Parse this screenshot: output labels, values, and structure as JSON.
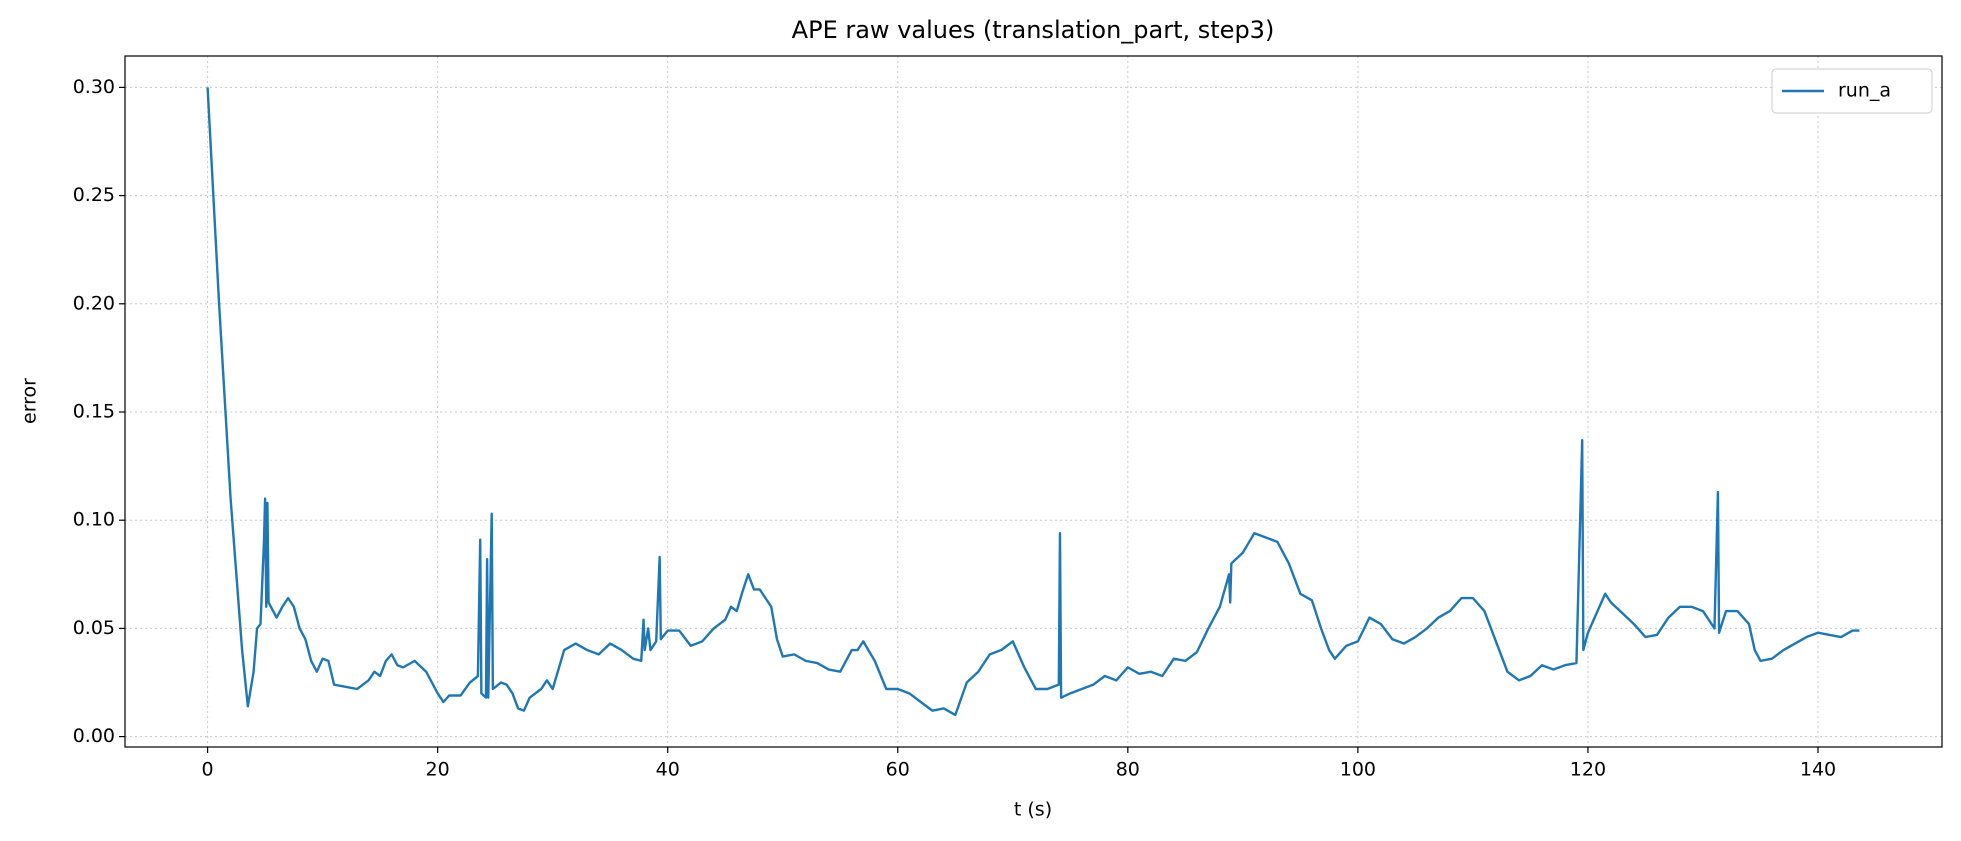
{
  "chart_data": {
    "type": "line",
    "title": "APE raw values (translation_part, step3)",
    "xlabel": "t (s)",
    "ylabel": "error",
    "x": [
      0,
      1,
      2,
      3,
      3.5,
      4,
      4.3,
      4.6,
      4.9,
      5.0,
      5.1,
      5.2,
      5.3,
      6,
      6.5,
      7,
      7.5,
      8,
      8.5,
      9,
      9.5,
      10,
      10.5,
      11,
      12,
      13,
      14,
      14.5,
      15,
      15.5,
      16,
      16.5,
      17,
      18,
      19,
      20,
      20.5,
      21,
      22,
      22.8,
      23.5,
      23.7,
      23.8,
      24.2,
      24.3,
      24.4,
      24.7,
      24.8,
      25.5,
      26,
      26.5,
      27,
      27.5,
      28,
      29,
      29.5,
      30,
      31,
      32,
      33,
      34,
      35,
      36,
      37,
      37.7,
      37.9,
      38.0,
      38.3,
      38.5,
      39,
      39.3,
      39.4,
      40,
      41,
      42,
      43,
      44,
      45,
      45.5,
      46,
      46.5,
      47,
      47.5,
      48,
      49,
      49.5,
      50,
      51,
      52,
      53,
      54,
      55,
      56,
      56.5,
      57,
      58,
      59,
      60,
      61,
      62,
      63,
      64,
      65,
      66,
      67,
      68,
      69,
      70,
      71,
      72,
      73,
      74,
      74.1,
      74.2,
      75,
      76,
      77,
      78,
      79,
      80,
      81,
      82,
      83,
      84,
      85,
      86,
      87,
      88,
      88.8,
      88.9,
      89,
      90,
      91,
      92,
      93,
      94,
      95,
      96,
      96.8,
      97.5,
      98,
      99,
      100,
      101,
      102,
      103,
      104,
      105,
      106,
      107,
      108,
      109,
      110,
      111,
      112,
      113,
      114,
      115,
      116,
      117,
      118,
      119,
      119.5,
      119.6,
      120,
      121,
      121.5,
      122,
      123,
      124,
      125,
      126,
      127,
      128,
      129,
      130,
      131,
      131.3,
      131.4,
      132,
      133,
      134,
      134.5,
      135,
      136,
      137,
      138,
      139,
      140,
      141,
      142,
      143,
      143.6
    ],
    "series": [
      {
        "name": "run_a",
        "color": "#1f77b4",
        "values": [
          0.3,
          0.2,
          0.11,
          0.04,
          0.014,
          0.03,
          0.05,
          0.052,
          0.09,
          0.11,
          0.06,
          0.108,
          0.062,
          0.055,
          0.06,
          0.064,
          0.06,
          0.05,
          0.045,
          0.035,
          0.03,
          0.036,
          0.035,
          0.024,
          0.023,
          0.022,
          0.026,
          0.03,
          0.028,
          0.035,
          0.038,
          0.033,
          0.032,
          0.035,
          0.03,
          0.02,
          0.016,
          0.019,
          0.019,
          0.025,
          0.028,
          0.091,
          0.02,
          0.018,
          0.082,
          0.018,
          0.103,
          0.022,
          0.025,
          0.024,
          0.02,
          0.013,
          0.012,
          0.018,
          0.022,
          0.026,
          0.022,
          0.04,
          0.043,
          0.04,
          0.038,
          0.043,
          0.04,
          0.036,
          0.035,
          0.054,
          0.04,
          0.05,
          0.04,
          0.044,
          0.083,
          0.045,
          0.049,
          0.049,
          0.042,
          0.044,
          0.05,
          0.054,
          0.06,
          0.058,
          0.067,
          0.075,
          0.068,
          0.068,
          0.06,
          0.045,
          0.037,
          0.038,
          0.035,
          0.034,
          0.031,
          0.03,
          0.04,
          0.04,
          0.044,
          0.035,
          0.022,
          0.022,
          0.02,
          0.016,
          0.012,
          0.013,
          0.01,
          0.025,
          0.03,
          0.038,
          0.04,
          0.044,
          0.032,
          0.022,
          0.022,
          0.024,
          0.094,
          0.018,
          0.02,
          0.022,
          0.024,
          0.028,
          0.026,
          0.032,
          0.029,
          0.03,
          0.028,
          0.036,
          0.035,
          0.039,
          0.05,
          0.06,
          0.075,
          0.062,
          0.08,
          0.085,
          0.094,
          0.092,
          0.09,
          0.08,
          0.066,
          0.063,
          0.05,
          0.04,
          0.036,
          0.042,
          0.044,
          0.055,
          0.052,
          0.045,
          0.043,
          0.046,
          0.05,
          0.055,
          0.058,
          0.064,
          0.064,
          0.058,
          0.044,
          0.03,
          0.026,
          0.028,
          0.033,
          0.031,
          0.033,
          0.034,
          0.137,
          0.04,
          0.048,
          0.06,
          0.066,
          0.062,
          0.057,
          0.052,
          0.046,
          0.047,
          0.055,
          0.06,
          0.06,
          0.058,
          0.05,
          0.113,
          0.048,
          0.058,
          0.058,
          0.052,
          0.04,
          0.035,
          0.036,
          0.04,
          0.043,
          0.046,
          0.048,
          0.047,
          0.046,
          0.049,
          0.049
        ]
      }
    ],
    "xlim": [
      -7.18,
      150.78
    ],
    "ylim": [
      -0.0048,
      0.3145
    ],
    "xticks": [
      0,
      20,
      40,
      60,
      80,
      100,
      120,
      140
    ],
    "yticks": [
      {
        "value": 0,
        "label": "0.00"
      },
      {
        "value": 0.05,
        "label": "0.05"
      },
      {
        "value": 0.1,
        "label": "0.10"
      },
      {
        "value": 0.15,
        "label": "0.15"
      },
      {
        "value": 0.2,
        "label": "0.20"
      },
      {
        "value": 0.25,
        "label": "0.25"
      },
      {
        "value": 0.3,
        "label": "0.30"
      }
    ],
    "grid": true,
    "legend": "upper right"
  }
}
